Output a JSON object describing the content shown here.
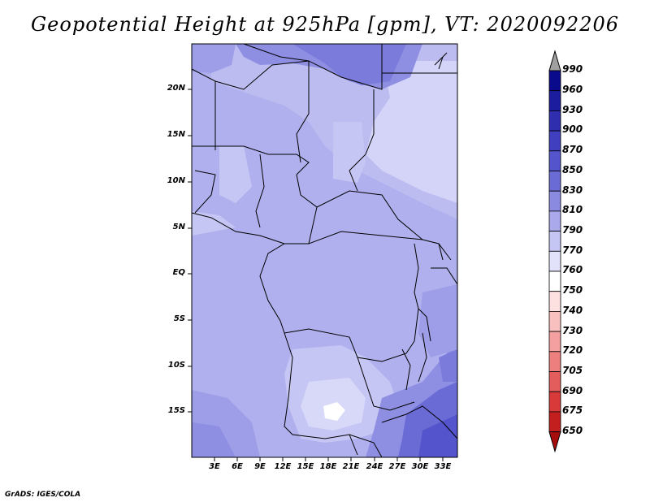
{
  "title": "Geopotential Height at 925hPa [gpm], VT: 2020092206",
  "credit": "GrADS: IGES/COLA",
  "map": {
    "lat_labels": [
      "20N",
      "15N",
      "10N",
      "5N",
      "EQ",
      "5S",
      "10S",
      "15S"
    ],
    "lon_labels": [
      "3E",
      "6E",
      "9E",
      "12E",
      "15E",
      "18E",
      "21E",
      "24E",
      "27E",
      "30E",
      "33E"
    ]
  },
  "colorbar": {
    "levels": [
      "990",
      "960",
      "930",
      "900",
      "870",
      "850",
      "830",
      "810",
      "790",
      "770",
      "760",
      "750",
      "740",
      "730",
      "720",
      "705",
      "690",
      "675",
      "650"
    ],
    "colors": [
      "#0a0a8c",
      "#1c1c9e",
      "#2e2eae",
      "#3f3fbf",
      "#5454cc",
      "#6b6bd6",
      "#8a8ae0",
      "#a9a9eb",
      "#c6c6f4",
      "#e2e2fa",
      "#ffffff",
      "#fde0e0",
      "#f9c0c0",
      "#f4a0a0",
      "#ee7f7f",
      "#e45d5d",
      "#d83a3a",
      "#c41f1f",
      "#a80d0d"
    ],
    "top_cap_color": "#a0a0a0"
  }
}
